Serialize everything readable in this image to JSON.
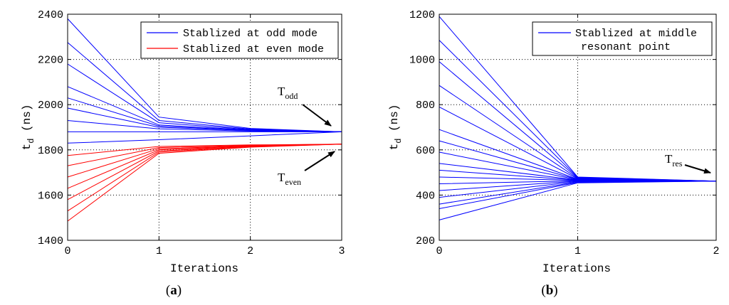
{
  "chart_data": [
    {
      "type": "line",
      "panel_label": "a",
      "xlabel": "Iterations",
      "ylabel_main": "t",
      "ylabel_sub": "d",
      "ylabel_unit": "(ns)",
      "xlim": [
        0,
        3
      ],
      "ylim": [
        1400,
        2400
      ],
      "xticks": [
        0,
        1,
        2,
        3
      ],
      "yticks": [
        1400,
        1600,
        1800,
        2000,
        2200,
        2400
      ],
      "grid": true,
      "legend_position": "top-right",
      "legend": [
        {
          "label": "Stablized at odd mode",
          "color": "#0000ff"
        },
        {
          "label": "Stablized at even mode",
          "color": "#ff0000"
        }
      ],
      "annotations": [
        {
          "main": "T",
          "sub": "odd",
          "points_to": [
            3,
            1880
          ]
        },
        {
          "main": "T",
          "sub": "even",
          "points_to": [
            3,
            1825
          ]
        }
      ],
      "series": [
        {
          "name": "odd",
          "color": "#0000ff",
          "x": [
            0,
            1,
            2,
            3
          ],
          "values": [
            2380,
            1945,
            1895,
            1880
          ]
        },
        {
          "name": "odd",
          "color": "#0000ff",
          "x": [
            0,
            1,
            2,
            3
          ],
          "values": [
            2275,
            1930,
            1892,
            1880
          ]
        },
        {
          "name": "odd",
          "color": "#0000ff",
          "x": [
            0,
            1,
            2,
            3
          ],
          "values": [
            2180,
            1920,
            1890,
            1880
          ]
        },
        {
          "name": "odd",
          "color": "#0000ff",
          "x": [
            0,
            1,
            2,
            3
          ],
          "values": [
            2080,
            1910,
            1888,
            1880
          ]
        },
        {
          "name": "odd",
          "color": "#0000ff",
          "x": [
            0,
            1,
            2,
            3
          ],
          "values": [
            2030,
            1905,
            1886,
            1880
          ]
        },
        {
          "name": "odd",
          "color": "#0000ff",
          "x": [
            0,
            1,
            2,
            3
          ],
          "values": [
            1985,
            1900,
            1885,
            1880
          ]
        },
        {
          "name": "odd",
          "color": "#0000ff",
          "x": [
            0,
            1,
            2,
            3
          ],
          "values": [
            1930,
            1893,
            1883,
            1880
          ]
        },
        {
          "name": "odd",
          "color": "#0000ff",
          "x": [
            0,
            1,
            2,
            3
          ],
          "values": [
            1880,
            1880,
            1880,
            1880
          ]
        },
        {
          "name": "odd",
          "color": "#0000ff",
          "x": [
            0,
            1,
            2,
            3
          ],
          "values": [
            1830,
            1845,
            1862,
            1880
          ]
        },
        {
          "name": "even",
          "color": "#ff0000",
          "x": [
            0,
            1,
            2,
            3
          ],
          "values": [
            1775,
            1815,
            1822,
            1825
          ]
        },
        {
          "name": "even",
          "color": "#ff0000",
          "x": [
            0,
            1,
            2,
            3
          ],
          "values": [
            1730,
            1810,
            1820,
            1825
          ]
        },
        {
          "name": "even",
          "color": "#ff0000",
          "x": [
            0,
            1,
            2,
            3
          ],
          "values": [
            1680,
            1805,
            1818,
            1825
          ]
        },
        {
          "name": "even",
          "color": "#ff0000",
          "x": [
            0,
            1,
            2,
            3
          ],
          "values": [
            1630,
            1800,
            1817,
            1825
          ]
        },
        {
          "name": "even",
          "color": "#ff0000",
          "x": [
            0,
            1,
            2,
            3
          ],
          "values": [
            1580,
            1795,
            1815,
            1825
          ]
        },
        {
          "name": "even",
          "color": "#ff0000",
          "x": [
            0,
            1,
            2,
            3
          ],
          "values": [
            1530,
            1790,
            1814,
            1825
          ]
        },
        {
          "name": "even",
          "color": "#ff0000",
          "x": [
            0,
            1,
            2,
            3
          ],
          "values": [
            1485,
            1785,
            1812,
            1825
          ]
        }
      ]
    },
    {
      "type": "line",
      "panel_label": "b",
      "xlabel": "Iterations",
      "ylabel_main": "t",
      "ylabel_sub": "d",
      "ylabel_unit": "(ns)",
      "xlim": [
        0,
        2
      ],
      "ylim": [
        200,
        1200
      ],
      "xticks": [
        0,
        1,
        2
      ],
      "yticks": [
        200,
        400,
        600,
        800,
        1000,
        1200
      ],
      "grid": true,
      "legend_position": "top-right",
      "legend": [
        {
          "label": "Stablized at middle",
          "label2": "resonant point",
          "color": "#0000ff"
        }
      ],
      "annotations": [
        {
          "main": "T",
          "sub": "res",
          "points_to": [
            2,
            462
          ]
        }
      ],
      "series": [
        {
          "name": "res",
          "color": "#0000ff",
          "x": [
            0,
            1,
            2
          ],
          "values": [
            1190,
            480,
            462
          ]
        },
        {
          "name": "res",
          "color": "#0000ff",
          "x": [
            0,
            1,
            2
          ],
          "values": [
            1085,
            478,
            462
          ]
        },
        {
          "name": "res",
          "color": "#0000ff",
          "x": [
            0,
            1,
            2
          ],
          "values": [
            990,
            476,
            462
          ]
        },
        {
          "name": "res",
          "color": "#0000ff",
          "x": [
            0,
            1,
            2
          ],
          "values": [
            885,
            474,
            462
          ]
        },
        {
          "name": "res",
          "color": "#0000ff",
          "x": [
            0,
            1,
            2
          ],
          "values": [
            790,
            472,
            462
          ]
        },
        {
          "name": "res",
          "color": "#0000ff",
          "x": [
            0,
            1,
            2
          ],
          "values": [
            690,
            470,
            462
          ]
        },
        {
          "name": "res",
          "color": "#0000ff",
          "x": [
            0,
            1,
            2
          ],
          "values": [
            640,
            469,
            462
          ]
        },
        {
          "name": "res",
          "color": "#0000ff",
          "x": [
            0,
            1,
            2
          ],
          "values": [
            590,
            468,
            462
          ]
        },
        {
          "name": "res",
          "color": "#0000ff",
          "x": [
            0,
            1,
            2
          ],
          "values": [
            540,
            467,
            462
          ]
        },
        {
          "name": "res",
          "color": "#0000ff",
          "x": [
            0,
            1,
            2
          ],
          "values": [
            510,
            466,
            462
          ]
        },
        {
          "name": "res",
          "color": "#0000ff",
          "x": [
            0,
            1,
            2
          ],
          "values": [
            480,
            465,
            462
          ]
        },
        {
          "name": "res",
          "color": "#0000ff",
          "x": [
            0,
            1,
            2
          ],
          "values": [
            450,
            463,
            462
          ]
        },
        {
          "name": "res",
          "color": "#0000ff",
          "x": [
            0,
            1,
            2
          ],
          "values": [
            420,
            462,
            462
          ]
        },
        {
          "name": "res",
          "color": "#0000ff",
          "x": [
            0,
            1,
            2
          ],
          "values": [
            390,
            460,
            462
          ]
        },
        {
          "name": "res",
          "color": "#0000ff",
          "x": [
            0,
            1,
            2
          ],
          "values": [
            360,
            458,
            462
          ]
        },
        {
          "name": "res",
          "color": "#0000ff",
          "x": [
            0,
            1,
            2
          ],
          "values": [
            340,
            456,
            462
          ]
        },
        {
          "name": "res",
          "color": "#0000ff",
          "x": [
            0,
            1,
            2
          ],
          "values": [
            290,
            454,
            462
          ]
        }
      ]
    }
  ]
}
